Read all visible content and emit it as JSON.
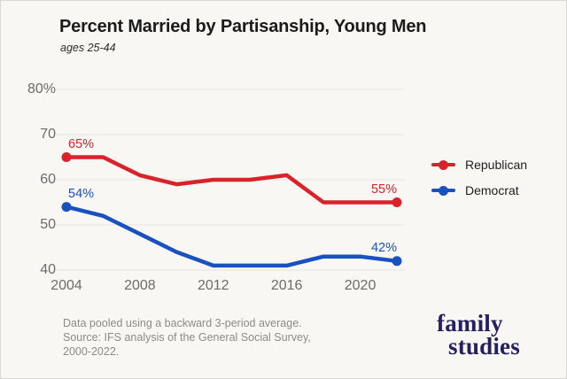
{
  "page": {
    "background": "#f8f7f4",
    "grid_color": "#e8e6e2"
  },
  "header": {
    "title": "Percent Married by Partisanship, Young Men",
    "subtitle": "ages 25-44"
  },
  "chart_data": {
    "type": "line",
    "title": "Percent Married by Partisanship, Young Men",
    "subtitle": "ages 25-44",
    "x": [
      2004,
      2006,
      2008,
      2010,
      2012,
      2014,
      2016,
      2018,
      2020,
      2022
    ],
    "series": [
      {
        "name": "Republican",
        "color": "#d8232a",
        "values": [
          65,
          65,
          61,
          59,
          60,
          60,
          61,
          55,
          55,
          55
        ],
        "start_label": "65%",
        "end_label": "55%"
      },
      {
        "name": "Democrat",
        "color": "#1951c1",
        "values": [
          54,
          52,
          48,
          44,
          41,
          41,
          41,
          43,
          43,
          42
        ],
        "start_label": "54%",
        "end_label": "42%"
      }
    ],
    "ylim": [
      40,
      80
    ],
    "yticks": [
      {
        "value": 80,
        "label": "80%"
      },
      {
        "value": 70,
        "label": "70"
      },
      {
        "value": 60,
        "label": "60"
      },
      {
        "value": 50,
        "label": "50"
      },
      {
        "value": 40,
        "label": "40"
      }
    ],
    "xticks": [
      {
        "value": 2004,
        "label": "2004"
      },
      {
        "value": 2008,
        "label": "2008"
      },
      {
        "value": 2012,
        "label": "2012"
      },
      {
        "value": 2016,
        "label": "2016"
      },
      {
        "value": 2020,
        "label": "2020"
      }
    ],
    "grid": "horizontal",
    "legend_position": "right"
  },
  "footer": {
    "line1": "Data pooled using a backward 3-period average.",
    "line2": "Source: IFS analysis of the General Social Survey,",
    "line3": "2000-2022."
  },
  "logo": {
    "line1": "family",
    "line2": "studies",
    "color": "#252160"
  }
}
